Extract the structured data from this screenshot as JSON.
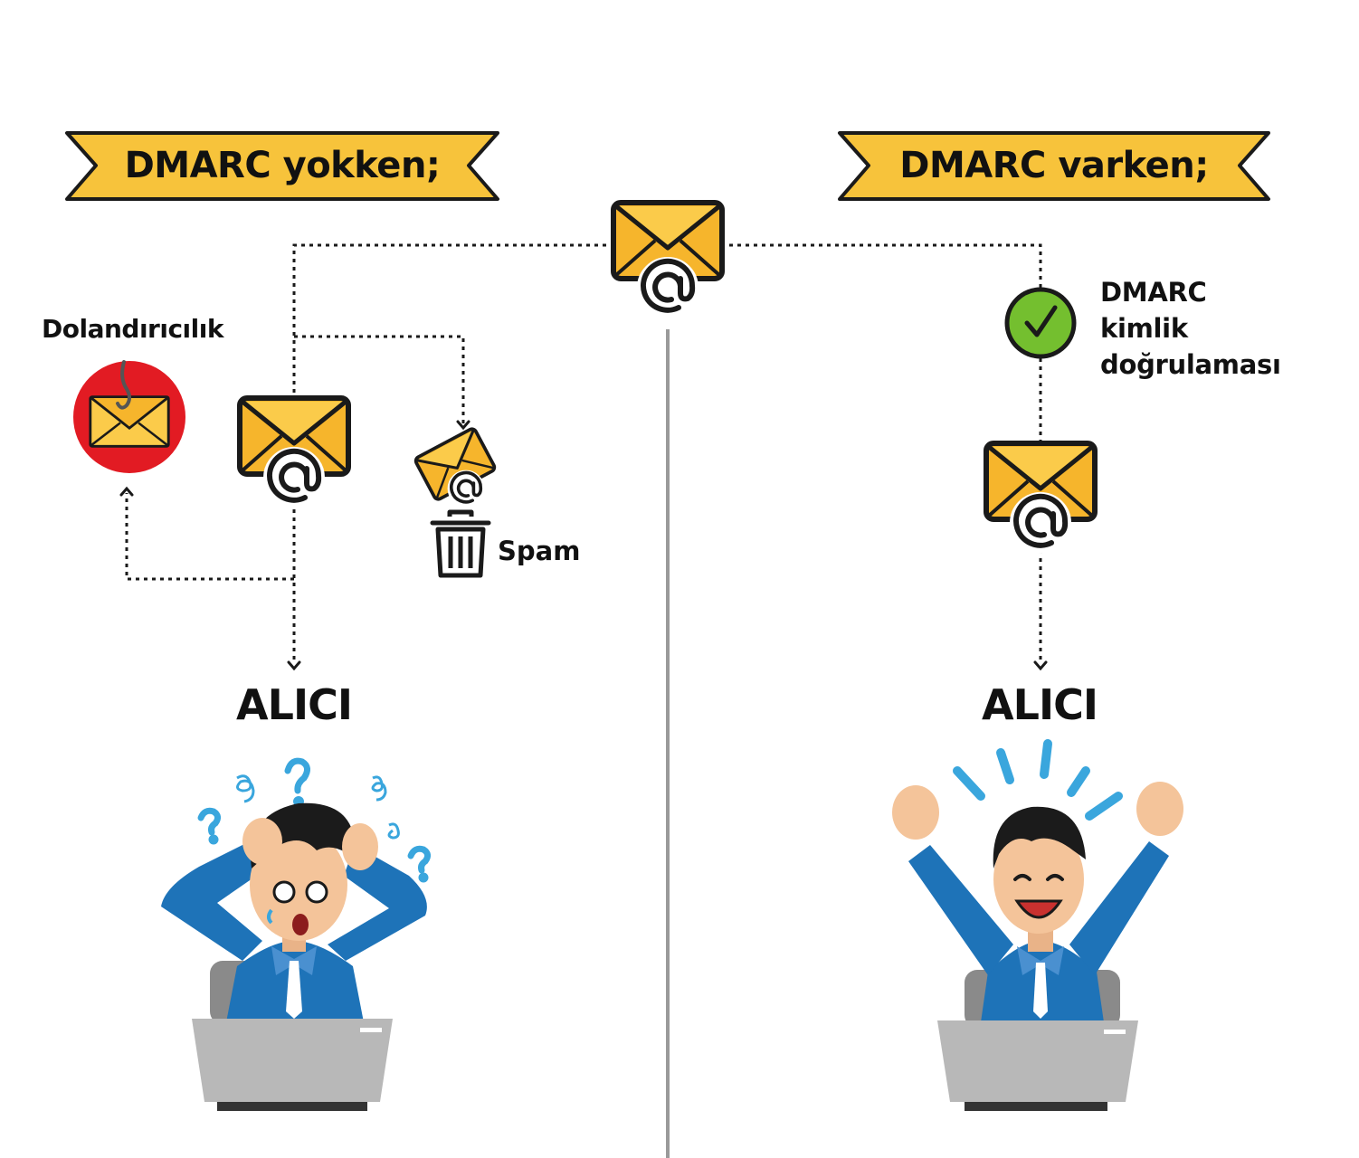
{
  "diagram": {
    "left_panel": {
      "banner": "DMARC yokken;",
      "fraud_label": "Dolandırıcılık",
      "spam_label": "Spam",
      "recipient_label": "ALICI"
    },
    "right_panel": {
      "banner": "DMARC varken;",
      "auth_label_lines": [
        "DMARC",
        "kimlik",
        "doğrulaması"
      ],
      "recipient_label": "ALICI"
    }
  },
  "colors": {
    "banner": "#f7c33b",
    "envelope": "#f6b52c",
    "envelope_flap": "#fbcb4a",
    "outline": "#1a1a1a",
    "fraud_circle": "#e21b23",
    "check_circle": "#74bf2f",
    "shirt": "#1e73b8",
    "skin": "#f4c49a",
    "hair": "#1b1b1b",
    "laptop": "#b8b8b8",
    "accent_blue": "#3aa6dd",
    "divider": "#9a9a9a"
  },
  "icons": [
    "envelope-at-icon",
    "fishing-hook-envelope-icon",
    "trash-icon",
    "check-icon",
    "question-mark-icon",
    "confusion-swirl-icon",
    "celebration-rays-icon"
  ]
}
